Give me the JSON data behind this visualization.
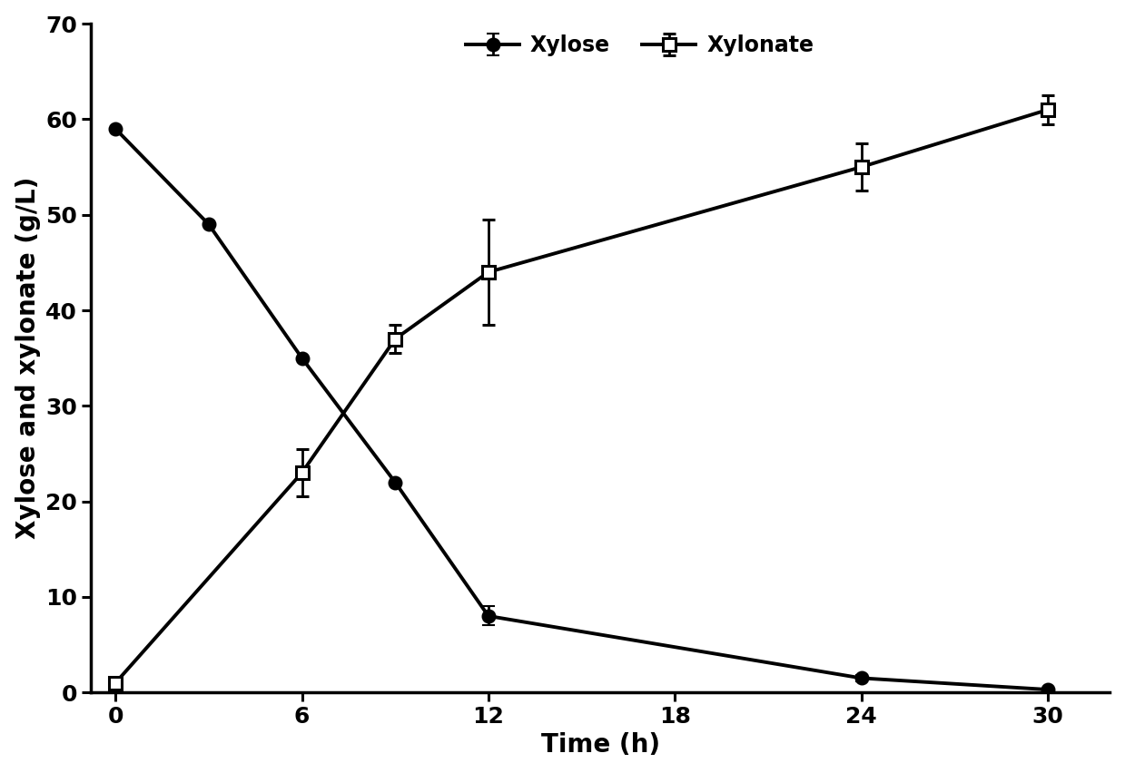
{
  "xylose_x": [
    0,
    3,
    6,
    9,
    12,
    24,
    30
  ],
  "xylose_y": [
    59,
    49,
    35,
    22,
    8,
    1.5,
    0.3
  ],
  "xylose_yerr": [
    0,
    0,
    0,
    0,
    1.0,
    0.3,
    0
  ],
  "xylonate_x": [
    0,
    6,
    9,
    12,
    24,
    30
  ],
  "xylonate_y": [
    1,
    23,
    37,
    44,
    55,
    61
  ],
  "xylonate_yerr": [
    0.3,
    2.5,
    1.5,
    5.5,
    2.5,
    1.5
  ],
  "xlabel": "Time (h)",
  "ylabel": "Xylose and xylonate (g/L)",
  "legend_xylose": "Xylose",
  "legend_xylonate": "Xylonate",
  "xlim": [
    -0.8,
    32
  ],
  "ylim": [
    0,
    70
  ],
  "xticks": [
    0,
    6,
    12,
    18,
    24,
    30
  ],
  "yticks": [
    0,
    10,
    20,
    30,
    40,
    50,
    60,
    70
  ],
  "line_color": "#000000",
  "background_color": "#ffffff",
  "label_fontsize": 20,
  "tick_fontsize": 18,
  "legend_fontsize": 17,
  "linewidth": 2.8,
  "markersize": 10,
  "capsize": 5,
  "elinewidth": 2.0,
  "spine_linewidth": 2.5
}
